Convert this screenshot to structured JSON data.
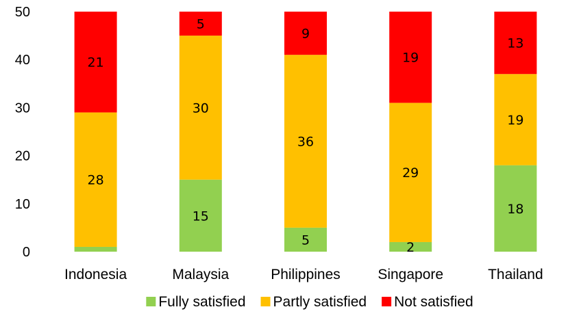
{
  "chart_data": {
    "type": "bar",
    "stacked": true,
    "categories": [
      "Indonesia",
      "Malaysia",
      "Philippines",
      "Singapore",
      "Thailand"
    ],
    "series": [
      {
        "name": "Fully satisfied",
        "color": "#92d050",
        "values": [
          1,
          15,
          5,
          2,
          18
        ],
        "labels": [
          "",
          "15",
          "5",
          "2",
          "18"
        ]
      },
      {
        "name": "Partly satisfied",
        "color": "#ffc000",
        "values": [
          28,
          30,
          36,
          29,
          19
        ],
        "labels": [
          "28",
          "30",
          "36",
          "29",
          "19"
        ]
      },
      {
        "name": "Not satisfied",
        "color": "#ff0000",
        "values": [
          21,
          5,
          9,
          19,
          13
        ],
        "labels": [
          "21",
          "5",
          "9",
          "19",
          "13"
        ]
      }
    ],
    "ylim": [
      0,
      50
    ],
    "yticks": [
      0,
      10,
      20,
      30,
      40,
      50
    ],
    "grid": false,
    "legend_position": "bottom"
  }
}
